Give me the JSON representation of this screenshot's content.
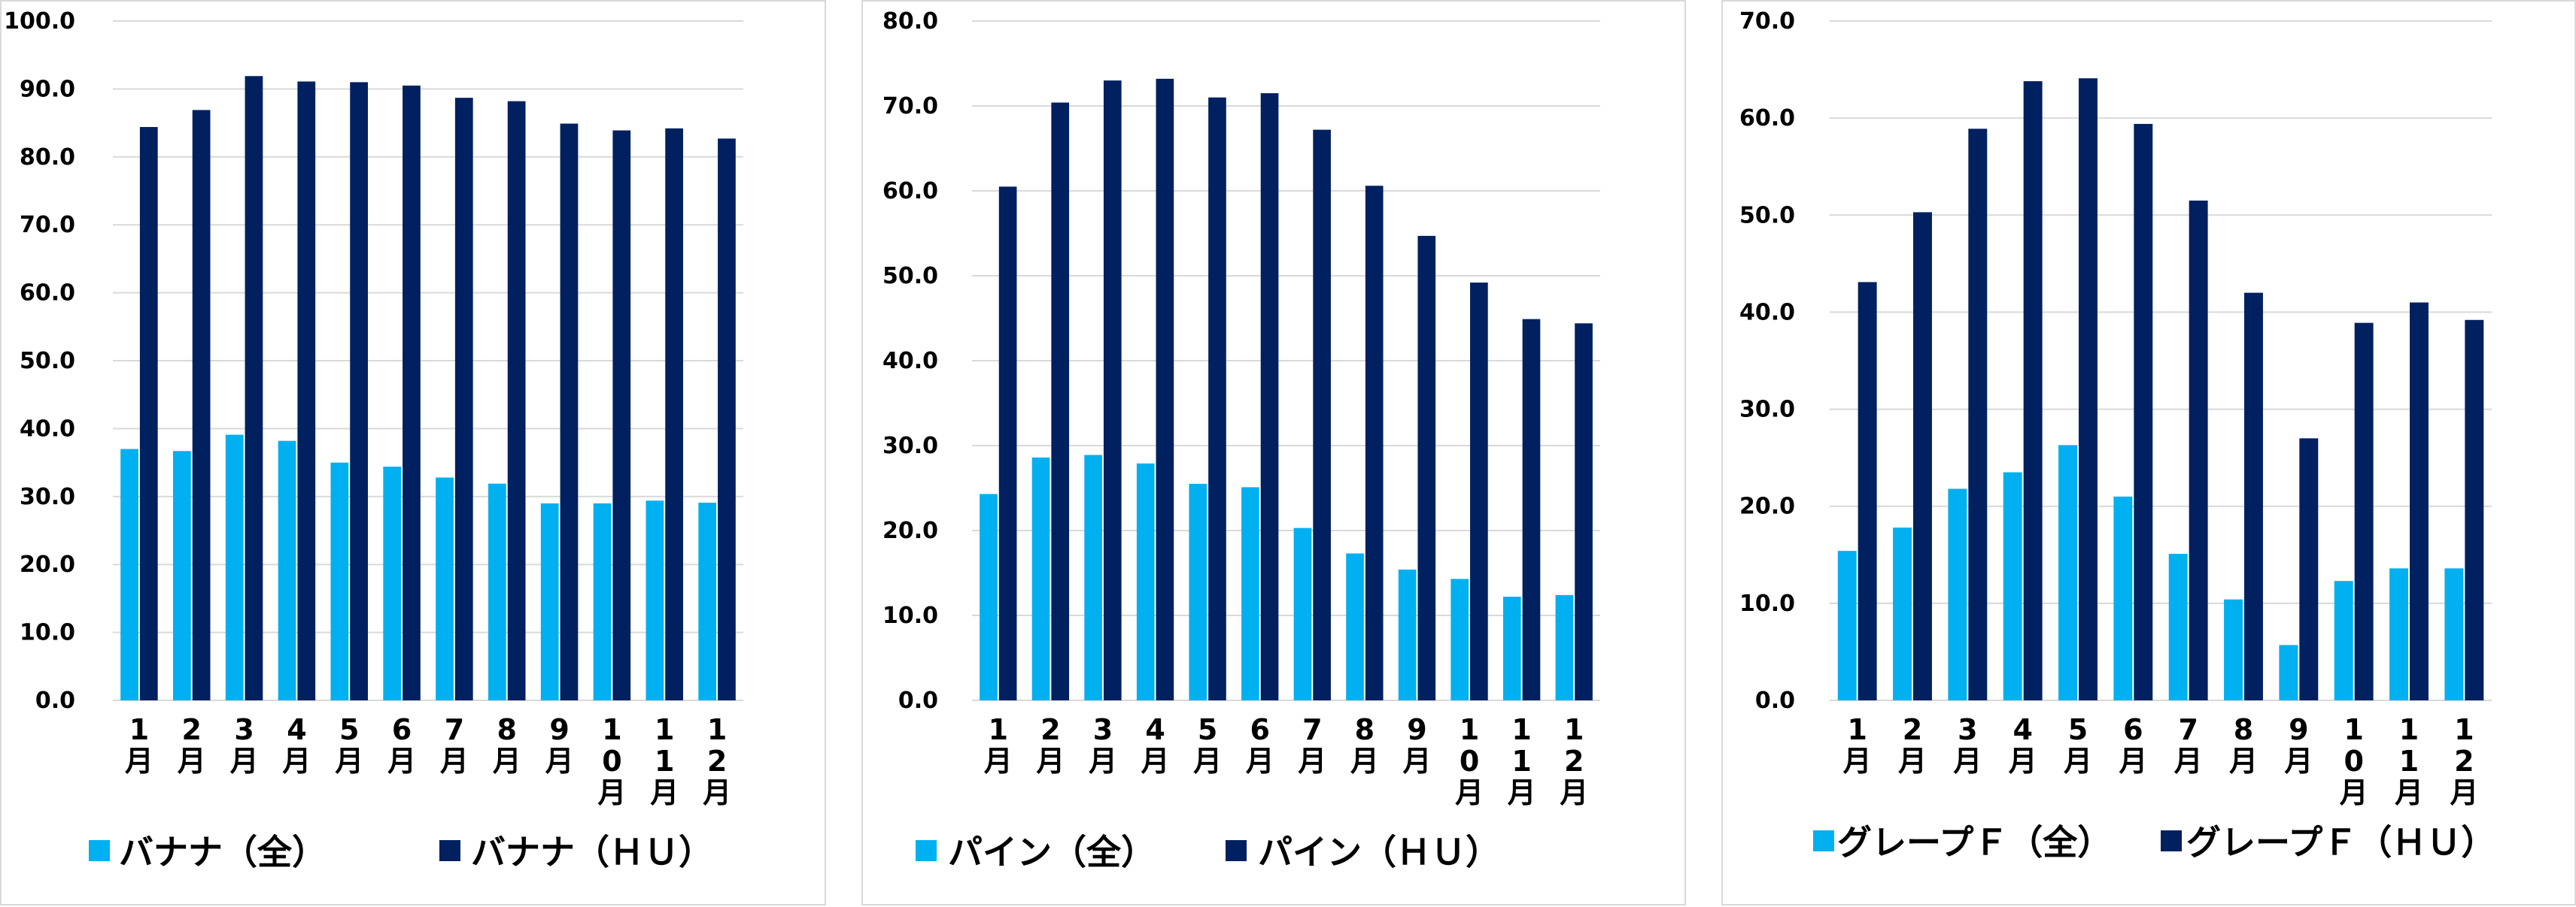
{
  "colors": {
    "all": "#00b0f0",
    "hu": "#002060",
    "grid": "#d9d9d9"
  },
  "chart_data": [
    {
      "type": "bar",
      "categories": [
        "1月",
        "2月",
        "3月",
        "4月",
        "5月",
        "6月",
        "7月",
        "8月",
        "9月",
        "10月",
        "11月",
        "12月"
      ],
      "series": [
        {
          "name": "バナナ（全）",
          "values": [
            37.0,
            36.7,
            39.1,
            38.2,
            35.0,
            34.4,
            32.8,
            31.9,
            29.0,
            29.0,
            29.4,
            29.1
          ]
        },
        {
          "name": "バナナ（ＨＵ）",
          "values": [
            84.4,
            86.9,
            91.9,
            91.1,
            91.0,
            90.5,
            88.7,
            88.2,
            84.9,
            83.9,
            84.2,
            82.7
          ]
        }
      ],
      "yticks": [
        "0.0",
        "10.0",
        "20.0",
        "30.0",
        "40.0",
        "50.0",
        "60.0",
        "70.0",
        "80.0",
        "90.0",
        "100.0"
      ],
      "ylim": [
        0,
        100
      ],
      "grid": true,
      "legend": "bottom"
    },
    {
      "type": "bar",
      "categories": [
        "1月",
        "2月",
        "3月",
        "4月",
        "5月",
        "6月",
        "7月",
        "8月",
        "9月",
        "10月",
        "11月",
        "12月"
      ],
      "series": [
        {
          "name": "パイン（全）",
          "values": [
            24.3,
            28.6,
            28.9,
            27.9,
            25.5,
            25.1,
            20.3,
            17.3,
            15.4,
            14.3,
            12.2,
            12.4
          ]
        },
        {
          "name": "パイン（ＨＵ）",
          "values": [
            60.5,
            70.4,
            73.0,
            73.2,
            71.0,
            71.5,
            67.2,
            60.6,
            54.7,
            49.2,
            44.9,
            44.4
          ]
        }
      ],
      "yticks": [
        "0.0",
        "10.0",
        "20.0",
        "30.0",
        "40.0",
        "50.0",
        "60.0",
        "70.0",
        "80.0"
      ],
      "ylim": [
        0,
        80
      ],
      "grid": true,
      "legend": "bottom"
    },
    {
      "type": "bar",
      "categories": [
        "1月",
        "2月",
        "3月",
        "4月",
        "5月",
        "6月",
        "7月",
        "8月",
        "9月",
        "10月",
        "11月",
        "12月"
      ],
      "series": [
        {
          "name": "グレープＦ（全）",
          "values": [
            15.4,
            17.8,
            21.8,
            23.5,
            26.3,
            21.0,
            15.1,
            10.4,
            5.7,
            12.3,
            13.6,
            13.6
          ]
        },
        {
          "name": "グレープＦ（ＨＵ）",
          "values": [
            43.1,
            50.3,
            58.9,
            63.8,
            64.1,
            59.4,
            51.5,
            42.0,
            27.0,
            38.9,
            41.0,
            39.2
          ]
        }
      ],
      "yticks": [
        "0.0",
        "10.0",
        "20.0",
        "30.0",
        "40.0",
        "50.0",
        "60.0",
        "70.0"
      ],
      "ylim": [
        0,
        70
      ],
      "grid": true,
      "legend": "bottom"
    }
  ]
}
